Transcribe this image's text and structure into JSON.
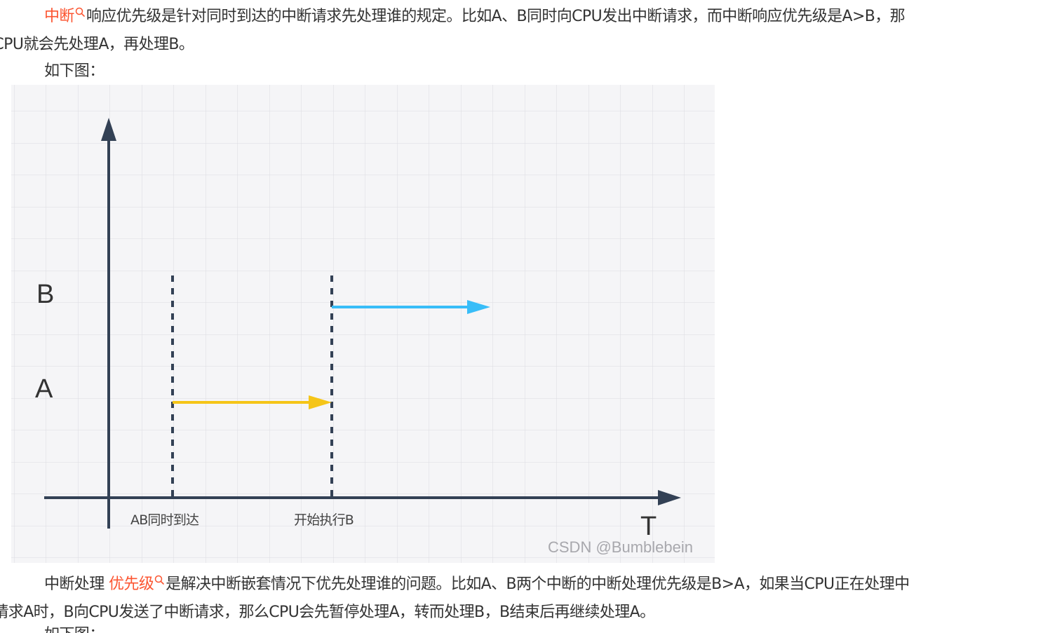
{
  "para1": {
    "link_text": "中断",
    "text_line1": "响应优先级是针对同时到达的中断请求先处理谁的规定。比如A、B同时向CPU发出中断请求，而中断响应优先级是A>B，那",
    "text_line2": "么CPU就会先处理A，再处理B。"
  },
  "para2": {
    "text": "如下图："
  },
  "figure": {
    "y_labels": {
      "b": "B",
      "a": "A"
    },
    "x_labels": {
      "arrive": "AB同时到达",
      "start_b": "开始执行B",
      "t_axis": "T"
    },
    "watermark": "CSDN @Bumblebein",
    "colors": {
      "grid_bg": "#f5f5f7",
      "grid_line": "#dcdce0",
      "axis": "#334155",
      "arrow_a": "#f5c518",
      "arrow_b": "#38bdf8"
    }
  },
  "para3": {
    "prefix": "中断处理",
    "link_text": "优先级",
    "text_line1": "是解决中断嵌套情况下优先处理谁的问题。比如A、B两个中断的中断处理优先级是B>A，如果当CPU正在处理中",
    "text_line2": "断请求A时，B向CPU发送了中断请求，那么CPU会先暂停处理A，转而处理B，B结束后再继续处理A。"
  },
  "para4": {
    "text": "如下图："
  },
  "colors": {
    "link": "#fc5531",
    "body_text": "#333333"
  }
}
